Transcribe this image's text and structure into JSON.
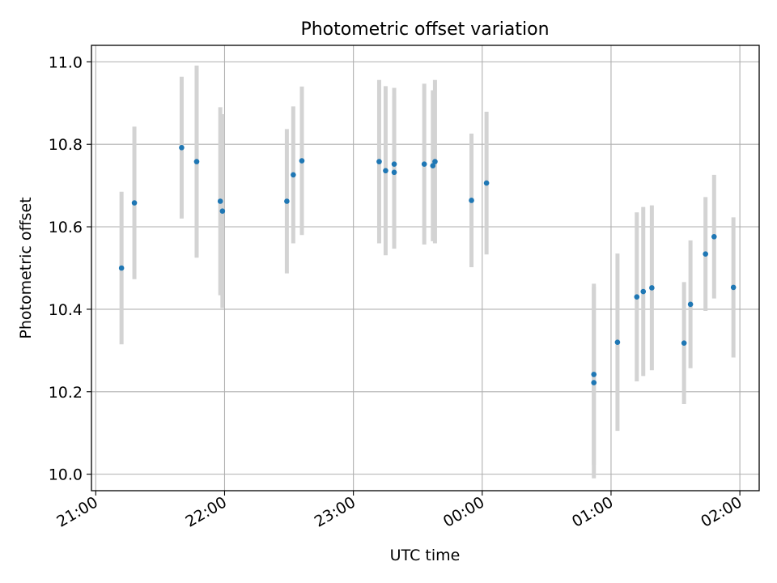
{
  "chart_data": {
    "type": "scatter",
    "title": "Photometric offset variation",
    "xlabel": "UTC time",
    "ylabel": "Photometric offset",
    "x_is_time": true,
    "xlim": [
      "20:58",
      "02:09"
    ],
    "ylim": [
      9.96,
      11.04
    ],
    "xticks": [
      "21:00",
      "22:00",
      "23:00",
      "00:00",
      "01:00",
      "02:00"
    ],
    "yticks": [
      "10.0",
      "10.2",
      "10.4",
      "10.6",
      "10.8",
      "11.0"
    ],
    "grid": true,
    "errorbar_color": "#d3d3d3",
    "point_color": "#1f77b4",
    "points": [
      {
        "t": "21:12",
        "y": 10.5,
        "err": 0.185
      },
      {
        "t": "21:18",
        "y": 10.658,
        "err": 0.185
      },
      {
        "t": "21:40",
        "y": 10.792,
        "err": 0.172
      },
      {
        "t": "21:47",
        "y": 10.758,
        "err": 0.233
      },
      {
        "t": "21:58",
        "y": 10.662,
        "err": 0.228
      },
      {
        "t": "21:59",
        "y": 10.638,
        "err": 0.235
      },
      {
        "t": "22:29",
        "y": 10.662,
        "err": 0.175
      },
      {
        "t": "22:32",
        "y": 10.726,
        "err": 0.166
      },
      {
        "t": "22:36",
        "y": 10.76,
        "err": 0.18
      },
      {
        "t": "23:12",
        "y": 10.758,
        "err": 0.198
      },
      {
        "t": "23:15",
        "y": 10.736,
        "err": 0.205
      },
      {
        "t": "23:19",
        "y": 10.752,
        "err": 0.185
      },
      {
        "t": "23:19",
        "y": 10.732,
        "err": 0.185
      },
      {
        "t": "23:33",
        "y": 10.752,
        "err": 0.195
      },
      {
        "t": "23:37",
        "y": 10.748,
        "err": 0.183
      },
      {
        "t": "23:38",
        "y": 10.758,
        "err": 0.198
      },
      {
        "t": "23:55",
        "y": 10.664,
        "err": 0.162
      },
      {
        "t": "00:02",
        "y": 10.706,
        "err": 0.173
      },
      {
        "t": "00:52",
        "y": 10.242,
        "err": 0.22
      },
      {
        "t": "00:52",
        "y": 10.222,
        "err": 0.232
      },
      {
        "t": "01:03",
        "y": 10.32,
        "err": 0.215
      },
      {
        "t": "01:12",
        "y": 10.43,
        "err": 0.205
      },
      {
        "t": "01:15",
        "y": 10.443,
        "err": 0.205
      },
      {
        "t": "01:19",
        "y": 10.452,
        "err": 0.2
      },
      {
        "t": "01:34",
        "y": 10.318,
        "err": 0.148
      },
      {
        "t": "01:37",
        "y": 10.412,
        "err": 0.155
      },
      {
        "t": "01:44",
        "y": 10.534,
        "err": 0.138
      },
      {
        "t": "01:48",
        "y": 10.576,
        "err": 0.15
      },
      {
        "t": "01:57",
        "y": 10.453,
        "err": 0.17
      }
    ]
  }
}
